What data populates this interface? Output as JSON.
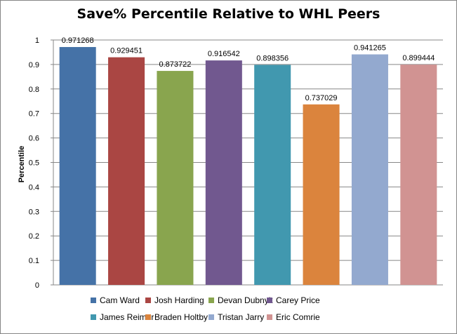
{
  "chart_data": {
    "type": "bar",
    "title": "Save% Percentile Relative to WHL Peers",
    "ylabel": "Percentile",
    "ylim": [
      0,
      1
    ],
    "yticks": [
      "0",
      "0.1",
      "0.2",
      "0.3",
      "0.4",
      "0.5",
      "0.6",
      "0.7",
      "0.8",
      "0.9",
      "1"
    ],
    "grid": true,
    "legend_position": "bottom",
    "categories": [
      "Cam Ward",
      "Josh Harding",
      "Devan Dubnyk",
      "Carey Price",
      "James Reimer",
      "Braden Holtby",
      "Tristan Jarry",
      "Eric Comrie"
    ],
    "values": [
      0.971268,
      0.929451,
      0.873722,
      0.916542,
      0.898356,
      0.737029,
      0.941265,
      0.899444
    ],
    "labels": [
      "0.971268",
      "0.929451",
      "0.873722",
      "0.916542",
      "0.898356",
      "0.737029",
      "0.941265",
      "0.899444"
    ],
    "colors": [
      "#4572A7",
      "#AA4643",
      "#89A54E",
      "#71588F",
      "#4198AF",
      "#DB843D",
      "#93A9CF",
      "#D19392"
    ]
  }
}
